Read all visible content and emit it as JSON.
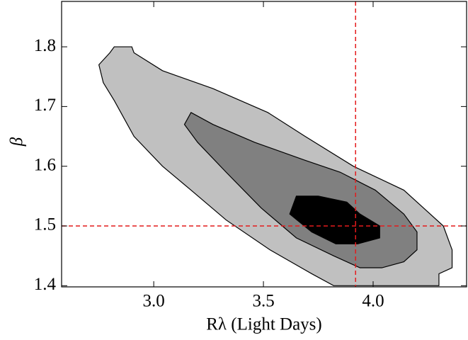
{
  "chart_data": {
    "type": "contour",
    "xlabel": "Rλ (Light Days)",
    "ylabel": "β",
    "xlim": [
      2.58,
      4.426
    ],
    "ylim": [
      1.398,
      1.876
    ],
    "xticks": [
      {
        "value": 3,
        "label": "3.0"
      },
      3.5,
      {
        "value": 4,
        "label": "4.0"
      }
    ],
    "yticks": [
      1.4,
      1.5,
      1.6,
      1.7,
      1.8
    ],
    "series": [
      {
        "color": "#c0c0c0",
        "x": [
          2.75,
          2.8,
          2.82,
          2.9,
          2.91,
          3.04,
          3.27,
          3.52,
          3.69,
          3.91,
          4.14,
          4.23,
          4.32,
          4.36,
          4.36,
          4.3,
          4.3,
          3.94,
          3.82,
          3.72,
          3.53,
          3.33,
          3.17,
          3.04,
          2.91,
          2.82,
          2.77
        ],
        "y": [
          1.77,
          1.79,
          1.8,
          1.8,
          1.79,
          1.76,
          1.73,
          1.69,
          1.65,
          1.6,
          1.56,
          1.53,
          1.5,
          1.46,
          1.43,
          1.42,
          1.4,
          1.4,
          1.4,
          1.42,
          1.46,
          1.51,
          1.56,
          1.6,
          1.65,
          1.71,
          1.74
        ]
      },
      {
        "color": "#808080",
        "x": [
          3.14,
          3.17,
          3.27,
          3.46,
          3.69,
          3.85,
          4.01,
          4.14,
          4.2,
          4.2,
          4.14,
          4.04,
          3.94,
          3.82,
          3.65,
          3.49,
          3.33,
          3.2
        ],
        "y": [
          1.67,
          1.69,
          1.67,
          1.64,
          1.61,
          1.59,
          1.56,
          1.52,
          1.49,
          1.46,
          1.44,
          1.43,
          1.43,
          1.45,
          1.48,
          1.53,
          1.59,
          1.64
        ]
      },
      {
        "color": "#000000",
        "x": [
          3.62,
          3.65,
          3.75,
          3.88,
          3.94,
          4.03,
          4.03,
          3.93,
          3.83,
          3.72
        ],
        "y": [
          1.52,
          1.55,
          1.55,
          1.54,
          1.52,
          1.5,
          1.48,
          1.47,
          1.47,
          1.49
        ]
      }
    ],
    "reference_lines": {
      "x": 3.92,
      "y": 1.5,
      "color": "#e41a1c"
    }
  }
}
